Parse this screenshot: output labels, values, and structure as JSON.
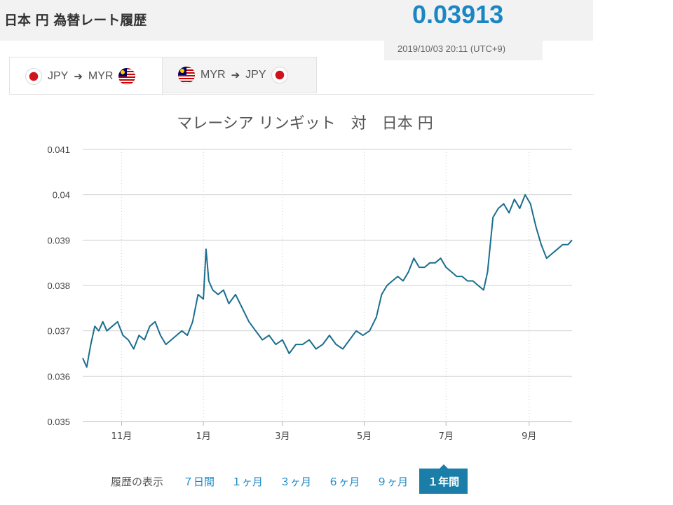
{
  "header": {
    "title": "日本 円 為替レート履歴",
    "rate": "0.03913",
    "timestamp": "2019/10/03 20:11 (UTC+9)"
  },
  "tabs": [
    {
      "from": "JPY",
      "to": "MYR",
      "from_flag": "japan-flag",
      "to_flag": "malaysia-flag",
      "active": true
    },
    {
      "from": "MYR",
      "to": "JPY",
      "from_flag": "malaysia-flag",
      "to_flag": "japan-flag",
      "active": false
    }
  ],
  "chart_data": {
    "type": "line",
    "title": "マレーシア リンギット　対　日本 円",
    "xlabel": "",
    "ylabel": "",
    "ylim": [
      0.035,
      0.041
    ],
    "y_ticks": [
      "0.041",
      "0.04",
      "0.039",
      "0.038",
      "0.037",
      "0.036",
      "0.035"
    ],
    "x_ticks": [
      "11月",
      "1月",
      "3月",
      "5月",
      "7月",
      "9月"
    ],
    "x_range": [
      "2018-10-03",
      "2019-10-03"
    ],
    "x_tick_dates": [
      "2018-11-01",
      "2019-01-01",
      "2019-03-01",
      "2019-05-01",
      "2019-07-01",
      "2019-09-01"
    ],
    "grid": true,
    "line_color": "#1a6e8e",
    "series": [
      {
        "x": [
          "2018-10-03",
          "2018-10-06",
          "2018-10-09",
          "2018-10-12",
          "2018-10-15",
          "2018-10-18",
          "2018-10-21",
          "2018-10-25",
          "2018-10-29",
          "2018-11-02",
          "2018-11-06",
          "2018-11-10",
          "2018-11-14",
          "2018-11-18",
          "2018-11-22",
          "2018-11-26",
          "2018-11-30",
          "2018-12-04",
          "2018-12-08",
          "2018-12-12",
          "2018-12-16",
          "2018-12-20",
          "2018-12-24",
          "2018-12-28",
          "2019-01-01",
          "2019-01-03",
          "2019-01-05",
          "2019-01-08",
          "2019-01-12",
          "2019-01-16",
          "2019-01-20",
          "2019-01-25",
          "2019-01-30",
          "2019-02-04",
          "2019-02-09",
          "2019-02-14",
          "2019-02-19",
          "2019-02-24",
          "2019-03-01",
          "2019-03-06",
          "2019-03-11",
          "2019-03-16",
          "2019-03-21",
          "2019-03-26",
          "2019-03-31",
          "2019-04-05",
          "2019-04-10",
          "2019-04-15",
          "2019-04-20",
          "2019-04-25",
          "2019-04-30",
          "2019-05-05",
          "2019-05-10",
          "2019-05-14",
          "2019-05-18",
          "2019-05-22",
          "2019-05-26",
          "2019-05-30",
          "2019-06-03",
          "2019-06-07",
          "2019-06-11",
          "2019-06-15",
          "2019-06-19",
          "2019-06-23",
          "2019-06-27",
          "2019-07-01",
          "2019-07-05",
          "2019-07-09",
          "2019-07-13",
          "2019-07-17",
          "2019-07-21",
          "2019-07-25",
          "2019-07-29",
          "2019-08-01",
          "2019-08-05",
          "2019-08-09",
          "2019-08-13",
          "2019-08-17",
          "2019-08-21",
          "2019-08-25",
          "2019-08-29",
          "2019-09-02",
          "2019-09-06",
          "2019-09-10",
          "2019-09-14",
          "2019-09-18",
          "2019-09-22",
          "2019-09-26",
          "2019-09-30",
          "2019-10-03"
        ],
        "y": [
          0.0364,
          0.0362,
          0.0367,
          0.0371,
          0.037,
          0.0372,
          0.037,
          0.0371,
          0.0372,
          0.0369,
          0.0368,
          0.0366,
          0.0369,
          0.0368,
          0.0371,
          0.0372,
          0.0369,
          0.0367,
          0.0368,
          0.0369,
          0.037,
          0.0369,
          0.0372,
          0.0378,
          0.0377,
          0.0388,
          0.0381,
          0.0379,
          0.0378,
          0.0379,
          0.0376,
          0.0378,
          0.0375,
          0.0372,
          0.037,
          0.0368,
          0.0369,
          0.0367,
          0.0368,
          0.0365,
          0.0367,
          0.0367,
          0.0368,
          0.0366,
          0.0367,
          0.0369,
          0.0367,
          0.0366,
          0.0368,
          0.037,
          0.0369,
          0.037,
          0.0373,
          0.0378,
          0.038,
          0.0381,
          0.0382,
          0.0381,
          0.0383,
          0.0386,
          0.0384,
          0.0384,
          0.0385,
          0.0385,
          0.0386,
          0.0384,
          0.0383,
          0.0382,
          0.0382,
          0.0381,
          0.0381,
          0.038,
          0.0379,
          0.0383,
          0.0395,
          0.0397,
          0.0398,
          0.0396,
          0.0399,
          0.0397,
          0.04,
          0.0398,
          0.0393,
          0.0389,
          0.0386,
          0.0387,
          0.0388,
          0.0389,
          0.0389,
          0.039
        ]
      }
    ]
  },
  "period_selector": {
    "label": "履歴の表示",
    "options": [
      "７日間",
      "１ヶ月",
      "３ヶ月",
      "６ヶ月",
      "９ヶ月",
      "１年間"
    ],
    "selected": "１年間"
  }
}
